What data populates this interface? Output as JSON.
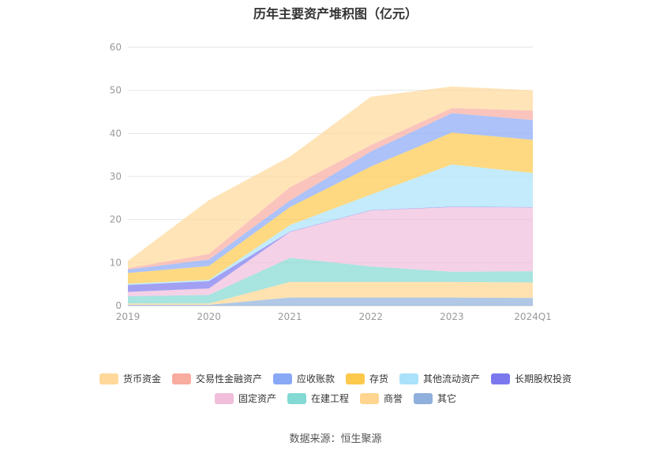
{
  "chart_data": {
    "type": "area",
    "title": "历年主要资产堆积图（亿元）",
    "categories": [
      "2019",
      "2020",
      "2021",
      "2022",
      "2023",
      "2024Q1"
    ],
    "ylim": [
      0,
      60
    ],
    "yticks": [
      0,
      10,
      20,
      30,
      40,
      50,
      60
    ],
    "grid": true,
    "legend_position": "bottom",
    "series": [
      {
        "name": "其它",
        "color": "#8fb0dc",
        "values": [
          0.2,
          0.2,
          1.9,
          1.9,
          1.9,
          1.8
        ]
      },
      {
        "name": "商誉",
        "color": "#ffd58f",
        "values": [
          0.3,
          0.3,
          3.6,
          3.6,
          3.6,
          3.6
        ]
      },
      {
        "name": "在建工程",
        "color": "#83d9d3",
        "values": [
          1.7,
          2.0,
          5.6,
          3.6,
          2.4,
          2.6
        ]
      },
      {
        "name": "固定资产",
        "color": "#f0bedb",
        "values": [
          1.0,
          1.5,
          6.0,
          13.0,
          15.0,
          14.8
        ]
      },
      {
        "name": "长期股权投资",
        "color": "#7b78ee",
        "values": [
          1.6,
          1.7,
          0.1,
          0.1,
          0.1,
          0.1
        ]
      },
      {
        "name": "其他流动资产",
        "color": "#a9e2fa",
        "values": [
          0.3,
          0.3,
          1.5,
          3.6,
          9.8,
          7.9
        ]
      },
      {
        "name": "存货",
        "color": "#fdc94c",
        "values": [
          2.5,
          3.2,
          4.2,
          6.5,
          7.4,
          7.7
        ]
      },
      {
        "name": "应收账款",
        "color": "#89a8f6",
        "values": [
          0.8,
          1.5,
          1.5,
          3.5,
          4.5,
          4.6
        ]
      },
      {
        "name": "交易性金融资产",
        "color": "#f8ab9f",
        "values": [
          0.3,
          1.3,
          3.1,
          1.5,
          1.2,
          2.2
        ]
      },
      {
        "name": "货币资金",
        "color": "#ffd89a",
        "values": [
          1.7,
          12.5,
          7.1,
          11.2,
          5.0,
          4.7
        ]
      }
    ]
  },
  "legend_rows": [
    [
      "货币资金",
      "交易性金融资产",
      "应收账款",
      "存货",
      "其他流动资产",
      "长期股权投资"
    ],
    [
      "固定资产",
      "在建工程",
      "商誉",
      "其它"
    ]
  ],
  "legend_colors": {
    "货币资金": "#ffd89a",
    "交易性金融资产": "#f8ab9f",
    "应收账款": "#89a8f6",
    "存货": "#fdc94c",
    "其他流动资产": "#a9e2fa",
    "长期股权投资": "#7b78ee",
    "固定资产": "#f0bedb",
    "在建工程": "#83d9d3",
    "商誉": "#ffd58f",
    "其它": "#8fb0dc"
  },
  "source": "数据来源：恒生聚源"
}
